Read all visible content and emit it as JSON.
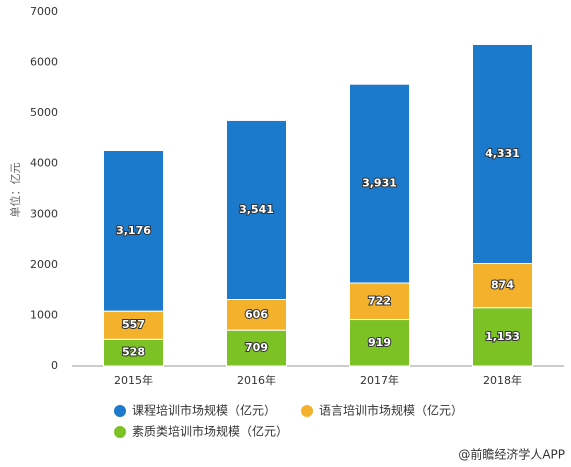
{
  "chart_data": {
    "type": "stacked_bar",
    "y_label": "单位：亿元",
    "categories": [
      "2015年",
      "2016年",
      "2017年",
      "2018年"
    ],
    "series": [
      {
        "name": "素质类培训市场规模（亿元）",
        "color": "#7dc225",
        "values": [
          528,
          709,
          919,
          1153
        ],
        "value_labels": [
          "528",
          "709",
          "919",
          "1,153"
        ]
      },
      {
        "name": "语言培训市场规模（亿元）",
        "color": "#f4b12c",
        "values": [
          557,
          606,
          722,
          874
        ]
      },
      {
        "name": "课程培训市场规模（亿元）",
        "color": "#1b7acb",
        "values": [
          3176,
          3541,
          3931,
          4331
        ],
        "value_labels": [
          "3,176",
          "3,541",
          "3,931",
          "4,331"
        ]
      }
    ],
    "ylim": [
      0,
      7000
    ],
    "yticks": [
      0,
      1000,
      2000,
      3000,
      4000,
      5000,
      6000,
      7000
    ],
    "source": "@前瞻经济学人APP"
  }
}
